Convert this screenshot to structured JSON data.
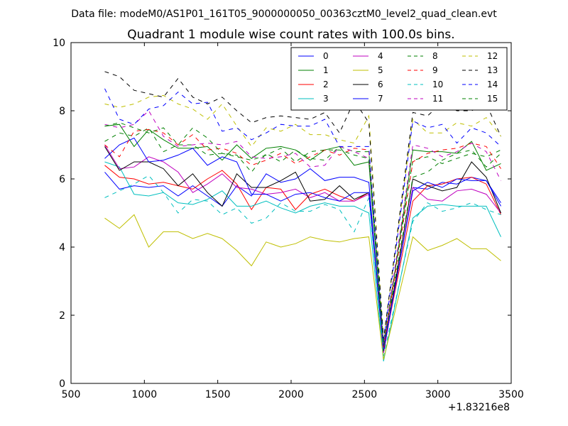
{
  "suptitle": "Data file: modeM0/AS1P01_161T05_9000000050_00363cztM0_level2_quad_clean.evt",
  "chart_data": {
    "type": "line",
    "title": "Quadrant 1 module wise count rates with 100.0s bins.",
    "xlabel": "",
    "ylabel": "",
    "xlim": [
      500,
      3500
    ],
    "ylim": [
      0,
      10
    ],
    "x_offset_label": "+1.83216e8",
    "xticks": [
      500,
      1000,
      1500,
      2000,
      2500,
      3000,
      3500
    ],
    "xtick_labels": [
      "500",
      "1000",
      "1500",
      "2000",
      "2500",
      "3000",
      "3500"
    ],
    "yticks": [
      0,
      2,
      4,
      6,
      8,
      10
    ],
    "ytick_labels": [
      "0",
      "2",
      "4",
      "6",
      "8",
      "10"
    ],
    "grid": false,
    "legend_position": "top-right",
    "x": [
      730,
      830,
      930,
      1030,
      1130,
      1230,
      1330,
      1430,
      1530,
      1630,
      1730,
      1830,
      1930,
      2030,
      2130,
      2230,
      2330,
      2430,
      2530,
      2630,
      2830,
      2930,
      3030,
      3130,
      3230,
      3330,
      3430
    ],
    "series": [
      {
        "name": "0",
        "color": "#0000ff",
        "dash": "solid",
        "values": [
          6.2,
          5.7,
          5.8,
          5.75,
          5.8,
          5.5,
          5.8,
          5.5,
          5.2,
          5.8,
          5.5,
          6.15,
          5.9,
          6.0,
          6.3,
          5.95,
          6.05,
          6.05,
          5.9,
          0.9,
          5.75,
          5.7,
          5.9,
          5.85,
          6.05,
          5.95,
          5.3
        ]
      },
      {
        "name": "1",
        "color": "#008000",
        "dash": "solid",
        "values": [
          7.55,
          7.6,
          6.95,
          7.45,
          7.15,
          6.9,
          6.9,
          6.95,
          6.55,
          7.0,
          6.6,
          6.9,
          6.95,
          6.85,
          6.55,
          6.85,
          6.95,
          6.4,
          6.5,
          1.0,
          6.85,
          6.8,
          6.8,
          6.75,
          7.1,
          6.25,
          6.45
        ]
      },
      {
        "name": "2",
        "color": "#ff0000",
        "dash": "solid",
        "values": [
          6.4,
          6.05,
          6.0,
          5.85,
          5.9,
          5.8,
          5.7,
          6.0,
          6.25,
          5.85,
          5.1,
          5.75,
          5.7,
          5.1,
          5.55,
          5.7,
          5.5,
          5.35,
          5.6,
          1.0,
          5.35,
          5.8,
          5.85,
          6.0,
          6.05,
          5.85,
          4.95
        ]
      },
      {
        "name": "3",
        "color": "#00bfbf",
        "dash": "solid",
        "values": [
          6.5,
          6.35,
          5.55,
          5.5,
          5.6,
          5.3,
          5.25,
          5.4,
          5.65,
          5.2,
          5.2,
          5.35,
          5.15,
          5.0,
          5.2,
          5.3,
          5.2,
          5.2,
          5.0,
          0.65,
          4.85,
          5.2,
          5.25,
          5.2,
          5.2,
          5.2,
          4.3
        ]
      },
      {
        "name": "4",
        "color": "#bf00bf",
        "dash": "solid",
        "values": [
          7.0,
          6.3,
          6.35,
          6.65,
          6.5,
          6.2,
          5.6,
          5.85,
          6.15,
          5.75,
          5.7,
          5.55,
          5.6,
          5.7,
          5.45,
          5.6,
          5.35,
          5.35,
          5.55,
          0.9,
          5.75,
          5.4,
          5.35,
          5.65,
          5.7,
          5.55,
          5.0
        ]
      },
      {
        "name": "5",
        "color": "#bfbf00",
        "dash": "solid",
        "values": [
          4.85,
          4.55,
          4.95,
          4.0,
          4.45,
          4.45,
          4.25,
          4.4,
          4.25,
          3.9,
          3.45,
          4.15,
          4.0,
          4.1,
          4.3,
          4.2,
          4.15,
          4.25,
          4.3,
          0.7,
          4.3,
          3.9,
          4.05,
          4.25,
          3.95,
          3.95,
          3.6
        ]
      },
      {
        "name": "6",
        "color": "#000000",
        "dash": "solid",
        "values": [
          6.95,
          6.25,
          6.5,
          6.5,
          6.3,
          5.8,
          6.15,
          5.6,
          5.2,
          6.15,
          5.75,
          5.75,
          5.95,
          6.2,
          5.35,
          5.4,
          5.8,
          5.4,
          5.6,
          0.95,
          6.0,
          5.8,
          5.65,
          5.75,
          6.5,
          6.05,
          5.0
        ]
      },
      {
        "name": "7",
        "color": "#0000ff",
        "dash": "solid",
        "values": [
          6.6,
          7.0,
          7.2,
          6.5,
          6.55,
          6.7,
          6.9,
          6.4,
          6.65,
          6.5,
          5.55,
          5.55,
          5.35,
          5.55,
          5.6,
          5.45,
          5.35,
          5.6,
          5.6,
          1.0,
          5.65,
          5.9,
          5.75,
          6.0,
          5.95,
          5.95,
          5.2
        ]
      },
      {
        "name": "8",
        "color": "#008000",
        "dash": "dashed",
        "values": [
          7.1,
          7.35,
          7.25,
          7.5,
          6.8,
          7.0,
          7.0,
          6.7,
          6.75,
          6.7,
          6.2,
          6.75,
          6.5,
          6.85,
          6.6,
          6.55,
          6.95,
          6.8,
          6.8,
          1.2,
          6.55,
          6.65,
          6.45,
          6.6,
          6.75,
          6.65,
          6.85
        ]
      },
      {
        "name": "9",
        "color": "#ff0000",
        "dash": "dashed",
        "values": [
          7.0,
          6.65,
          7.4,
          7.45,
          7.35,
          7.0,
          7.3,
          6.85,
          6.9,
          6.75,
          6.4,
          6.55,
          6.75,
          6.45,
          6.65,
          6.85,
          6.7,
          6.9,
          6.85,
          1.05,
          6.5,
          6.75,
          6.85,
          6.9,
          7.05,
          6.95,
          6.3
        ]
      },
      {
        "name": "10",
        "color": "#00bfbf",
        "dash": "dashed",
        "values": [
          5.45,
          5.65,
          5.85,
          6.1,
          5.6,
          5.0,
          5.4,
          5.35,
          4.95,
          5.15,
          4.7,
          4.85,
          5.3,
          5.05,
          5.05,
          5.25,
          5.1,
          4.45,
          5.45,
          0.8,
          4.75,
          5.3,
          5.05,
          5.15,
          5.3,
          5.1,
          4.95
        ]
      },
      {
        "name": "11",
        "color": "#bf00bf",
        "dash": "dashed",
        "values": [
          7.6,
          7.5,
          7.6,
          8.0,
          7.25,
          6.95,
          7.0,
          7.05,
          7.0,
          7.1,
          6.65,
          6.6,
          6.65,
          6.75,
          6.35,
          6.4,
          6.95,
          6.8,
          6.6,
          1.1,
          7.0,
          6.9,
          6.65,
          6.8,
          7.05,
          6.8,
          5.95
        ]
      },
      {
        "name": "12",
        "color": "#bfbf00",
        "dash": "dashed",
        "values": [
          8.2,
          8.1,
          8.2,
          8.4,
          8.45,
          8.2,
          8.05,
          7.75,
          8.2,
          7.55,
          6.95,
          7.5,
          7.4,
          7.6,
          7.3,
          7.3,
          7.15,
          7.05,
          7.85,
          1.3,
          7.75,
          7.35,
          7.35,
          7.65,
          7.55,
          7.8,
          7.25
        ]
      },
      {
        "name": "13",
        "color": "#000000",
        "dash": "dashed",
        "values": [
          9.15,
          9.0,
          8.6,
          8.5,
          8.4,
          8.95,
          8.4,
          8.2,
          8.4,
          8.0,
          7.65,
          7.8,
          7.85,
          7.8,
          7.75,
          7.95,
          7.35,
          8.3,
          7.65,
          1.3,
          7.95,
          7.85,
          8.25,
          8.0,
          8.0,
          8.2,
          7.25
        ]
      },
      {
        "name": "14",
        "color": "#0000ff",
        "dash": "dashed",
        "values": [
          8.65,
          7.75,
          7.6,
          8.05,
          8.15,
          8.55,
          8.2,
          8.25,
          7.4,
          7.5,
          7.15,
          7.35,
          7.6,
          7.55,
          7.55,
          7.75,
          6.95,
          6.95,
          6.95,
          1.2,
          7.7,
          7.5,
          7.6,
          7.05,
          7.5,
          7.35,
          6.95
        ]
      },
      {
        "name": "15",
        "color": "#008000",
        "dash": "dashed",
        "values": [
          7.55,
          7.65,
          7.5,
          7.35,
          7.5,
          7.0,
          7.5,
          7.2,
          6.75,
          6.65,
          6.55,
          6.7,
          6.9,
          6.5,
          6.8,
          6.85,
          6.85,
          6.7,
          6.6,
          1.1,
          6.05,
          6.2,
          6.55,
          6.75,
          6.85,
          6.35,
          6.75
        ]
      }
    ]
  }
}
